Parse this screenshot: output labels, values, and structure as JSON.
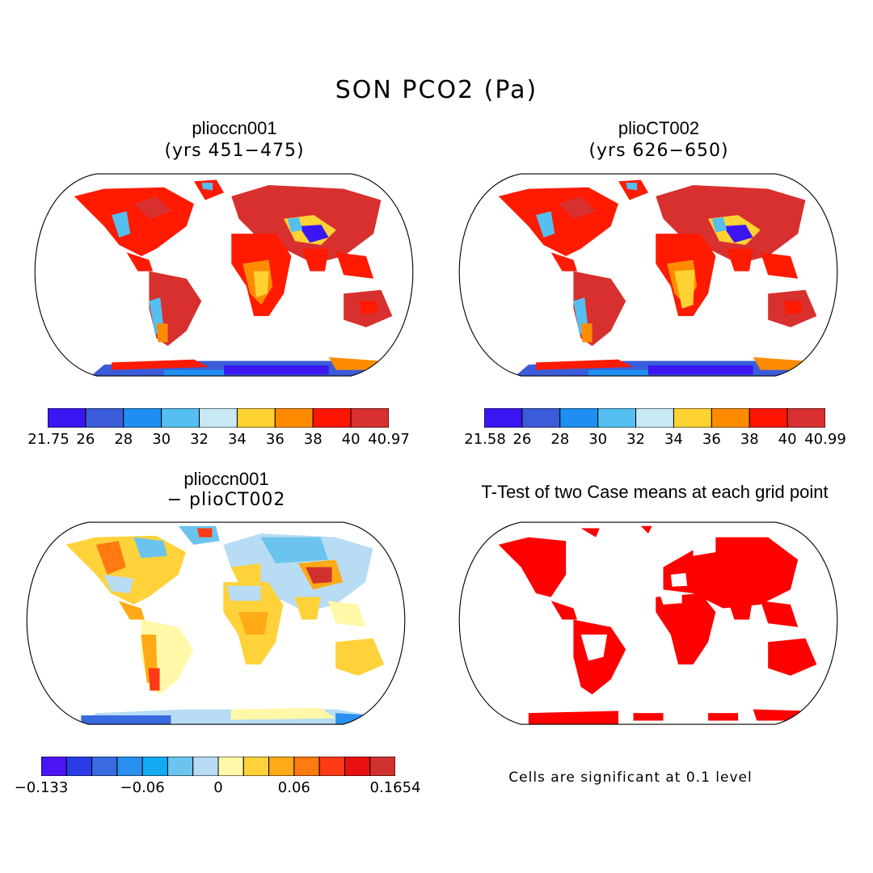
{
  "title": "SON PCO2 (Pa)",
  "panels": [
    {
      "id": "p1",
      "title": "plioccn001",
      "subtitle": "(yrs 451−475)",
      "colorbar": {
        "labels": [
          "21.75",
          "26",
          "28",
          "30",
          "32",
          "34",
          "36",
          "38",
          "40",
          "40.97"
        ],
        "colors": [
          "#3b16f2",
          "#3a5cd8",
          "#1e8ff0",
          "#54bff0",
          "#c8e8f4",
          "#ffd233",
          "#ff8c00",
          "#ff1400",
          "#d8302e"
        ]
      }
    },
    {
      "id": "p2",
      "title": "plioCT002",
      "subtitle": "(yrs 626−650)",
      "colorbar": {
        "labels": [
          "21.58",
          "26",
          "28",
          "30",
          "32",
          "34",
          "36",
          "38",
          "40",
          "40.99"
        ],
        "colors": [
          "#3b16f2",
          "#3a5cd8",
          "#1e8ff0",
          "#54bff0",
          "#c8e8f4",
          "#ffd233",
          "#ff8c00",
          "#ff1400",
          "#d8302e"
        ]
      }
    },
    {
      "id": "p3",
      "title": "plioccn001",
      "subtitle": "− plioCT002",
      "colorbar": {
        "labels": [
          "−0.133",
          "−0.06",
          "0",
          "0.06",
          "0.1654"
        ],
        "colors": [
          "#4a14f5",
          "#2a3ce8",
          "#3a6ae0",
          "#2a90f0",
          "#12aaf2",
          "#6ac4ee",
          "#b8dcf4",
          "#fff8a8",
          "#ffd23a",
          "#ffaa16",
          "#ff7a10",
          "#ff3a14",
          "#e81010",
          "#d0302e"
        ]
      }
    },
    {
      "id": "p4",
      "title": "T-Test of two Case means at each grid point",
      "subtitle": "",
      "note": "Cells are significant at 0.1 level"
    }
  ]
}
